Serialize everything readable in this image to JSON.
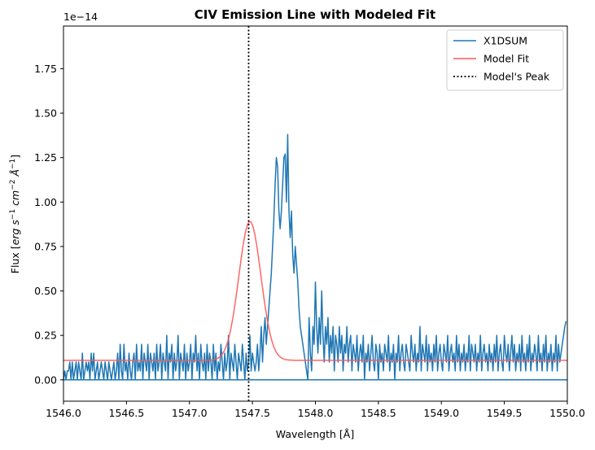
{
  "chart_data": {
    "type": "line",
    "title": "CIV Emission Line with Modeled Fit",
    "xlabel": "Wavelength [Å]",
    "ylabel": "Flux [erg s⁻¹ cm⁻² Å⁻¹]",
    "offset_text": "1e−14",
    "xlim": [
      1546.0,
      1550.0
    ],
    "ylim": [
      -0.12,
      1.99
    ],
    "y_scale_factor": 1e-14,
    "xticks": [
      "1546.0",
      "1546.5",
      "1547.0",
      "1547.5",
      "1548.0",
      "1548.5",
      "1549.0",
      "1549.5",
      "1550.0"
    ],
    "yticks": [
      "0.00",
      "0.25",
      "0.50",
      "0.75",
      "1.00",
      "1.25",
      "1.50",
      "1.75"
    ],
    "legend_position": "top-right",
    "grid": false,
    "series": [
      {
        "name": "X1DSUM",
        "color": "#1f77b4",
        "x_start": 1546.0,
        "x_step": 0.01,
        "y": [
          0.0,
          0.05,
          0.0,
          0.05,
          0.05,
          0.1,
          0.0,
          0.1,
          0.0,
          0.05,
          0.1,
          0.0,
          0.1,
          0.05,
          0.0,
          0.15,
          0.0,
          0.05,
          0.1,
          0.05,
          0.1,
          0.0,
          0.15,
          0.05,
          0.15,
          0.0,
          0.05,
          0.1,
          0.0,
          0.05,
          0.1,
          0.05,
          0.0,
          0.1,
          0.05,
          0.0,
          0.1,
          0.05,
          0.0,
          0.05,
          0.1,
          0.0,
          0.05,
          0.15,
          0.0,
          0.2,
          0.05,
          0.0,
          0.2,
          0.05,
          0.1,
          0.0,
          0.15,
          0.05,
          0.0,
          0.1,
          0.15,
          0.0,
          0.2,
          0.05,
          0.1,
          0.05,
          0.2,
          0.0,
          0.15,
          0.1,
          0.05,
          0.2,
          0.0,
          0.15,
          0.1,
          0.05,
          0.15,
          0.0,
          0.2,
          0.05,
          0.1,
          0.2,
          0.0,
          0.15,
          0.1,
          0.05,
          0.25,
          0.0,
          0.15,
          0.1,
          0.2,
          0.0,
          0.15,
          0.05,
          0.1,
          0.25,
          0.0,
          0.15,
          0.1,
          0.05,
          0.2,
          0.0,
          0.15,
          0.05,
          0.1,
          0.2,
          0.0,
          0.15,
          0.1,
          0.25,
          0.05,
          0.15,
          0.0,
          0.2,
          0.1,
          0.05,
          0.15,
          0.0,
          0.2,
          0.05,
          0.15,
          0.1,
          0.0,
          0.2,
          0.05,
          0.15,
          0.0,
          0.1,
          0.05,
          0.2,
          0.1,
          0.0,
          0.15,
          0.05,
          0.1,
          0.25,
          0.0,
          0.15,
          0.1,
          0.05,
          0.2,
          0.1,
          0.0,
          0.15,
          0.1,
          0.05,
          0.2,
          0.1,
          0.0,
          0.15,
          0.05,
          0.1,
          0.25,
          0.05,
          0.15,
          0.1,
          0.05,
          0.1,
          0.2,
          0.05,
          0.15,
          0.3,
          0.1,
          0.25,
          0.35,
          0.2,
          0.3,
          0.4,
          0.5,
          0.6,
          0.75,
          0.9,
          1.1,
          1.25,
          1.2,
          0.95,
          0.85,
          0.95,
          1.1,
          1.25,
          1.27,
          1.0,
          1.38,
          0.95,
          0.8,
          0.95,
          0.7,
          0.6,
          0.75,
          0.65,
          0.55,
          0.4,
          0.3,
          0.25,
          0.2,
          0.15,
          0.1,
          0.05,
          0.0,
          0.35,
          0.15,
          0.05,
          0.3,
          0.2,
          0.55,
          0.3,
          0.15,
          0.35,
          0.2,
          0.5,
          0.25,
          0.1,
          0.3,
          0.2,
          0.35,
          0.1,
          0.25,
          0.15,
          0.3,
          0.05,
          0.25,
          0.2,
          0.1,
          0.3,
          0.15,
          0.25,
          0.05,
          0.2,
          0.15,
          0.3,
          0.1,
          0.2,
          0.25,
          0.05,
          0.2,
          0.15,
          0.1,
          0.25,
          0.05,
          0.15,
          0.2,
          0.1,
          0.25,
          0.0,
          0.15,
          0.1,
          0.2,
          0.05,
          0.15,
          0.25,
          0.1,
          0.05,
          0.2,
          0.15,
          0.0,
          0.2,
          0.1,
          0.15,
          0.05,
          0.2,
          0.15,
          0.1,
          0.25,
          0.05,
          0.15,
          0.1,
          0.2,
          0.0,
          0.15,
          0.1,
          0.25,
          0.05,
          0.15,
          0.2,
          0.1,
          0.05,
          0.2,
          0.15,
          0.1,
          0.05,
          0.25,
          0.15,
          0.1,
          0.2,
          0.05,
          0.15,
          0.1,
          0.3,
          0.05,
          0.2,
          0.15,
          0.1,
          0.25,
          0.05,
          0.2,
          0.1,
          0.15,
          0.05,
          0.2,
          0.1,
          0.25,
          0.05,
          0.15,
          0.2,
          0.1,
          0.05,
          0.2,
          0.15,
          0.1,
          0.25,
          0.05,
          0.15,
          0.2,
          0.1,
          0.15,
          0.05,
          0.25,
          0.1,
          0.2,
          0.05,
          0.15,
          0.1,
          0.2,
          0.05,
          0.15,
          0.1,
          0.25,
          0.05,
          0.2,
          0.15,
          0.1,
          0.2,
          0.05,
          0.15,
          0.1,
          0.25,
          0.05,
          0.15,
          0.2,
          0.1,
          0.15,
          0.05,
          0.2,
          0.1,
          0.15,
          0.05,
          0.2,
          0.1,
          0.25,
          0.05,
          0.15,
          0.2,
          0.1,
          0.05,
          0.25,
          0.15,
          0.1,
          0.2,
          0.05,
          0.15,
          0.25,
          0.1,
          0.2,
          0.05,
          0.15,
          0.1,
          0.2,
          0.05,
          0.25,
          0.1,
          0.15,
          0.05,
          0.2,
          0.1,
          0.25,
          0.05,
          0.15,
          0.1,
          0.2,
          0.15,
          0.05,
          0.25,
          0.1,
          0.15,
          0.05,
          0.2,
          0.1,
          0.25,
          0.05,
          0.15,
          0.1,
          0.2,
          0.05,
          0.15,
          0.1,
          0.25,
          0.05,
          0.2,
          0.1,
          0.15,
          0.2,
          0.25,
          0.3,
          0.33
        ],
        "baseline": 0.0
      },
      {
        "name": "Model Fit",
        "color": "#ff5555",
        "model": {
          "continuum": 0.11,
          "amplitude": 0.78,
          "center": 1547.48,
          "sigma": 0.088
        }
      },
      {
        "name": "Model's Peak",
        "color": "#000000",
        "style": "dotted",
        "x": 1547.47
      }
    ]
  }
}
